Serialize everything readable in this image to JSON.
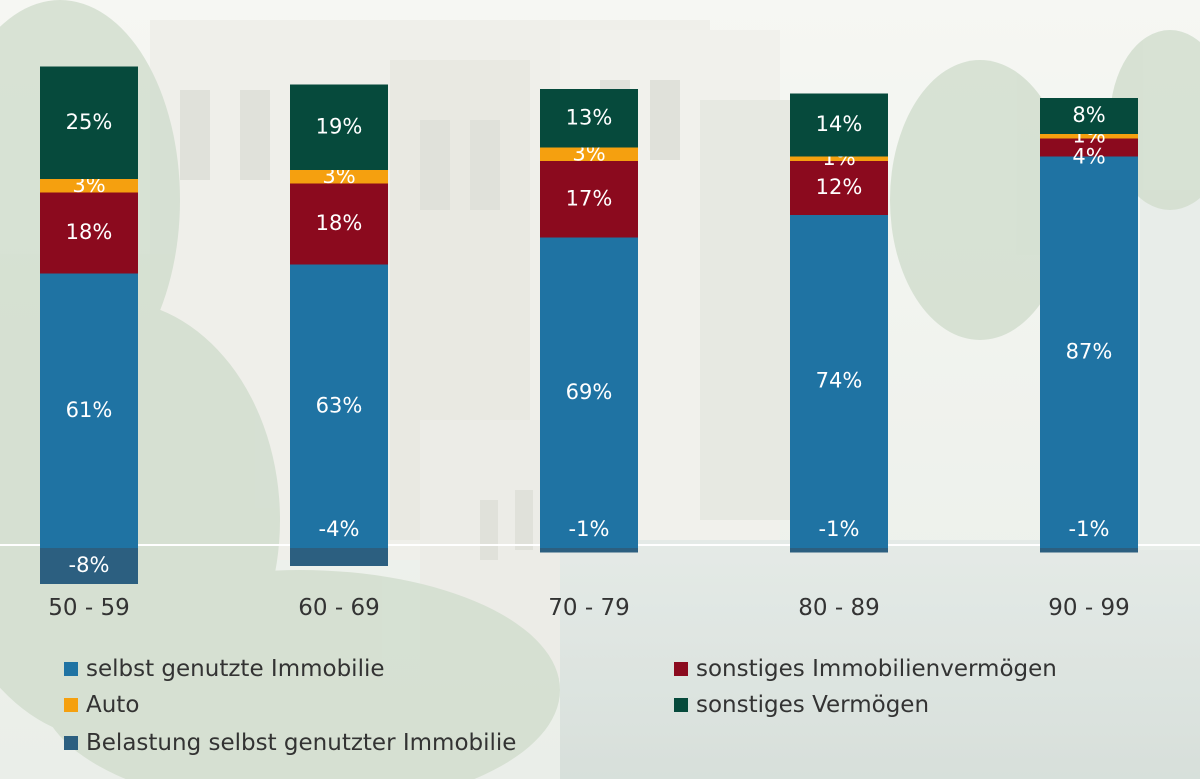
{
  "chart_data": {
    "type": "bar",
    "stacked": true,
    "categories": [
      "50 - 59",
      "60 - 69",
      "70 - 79",
      "80 - 89",
      "90 - 99"
    ],
    "series": [
      {
        "name": "selbst genutzte Immobilie",
        "color": "#1f73a3",
        "values": [
          61,
          63,
          69,
          74,
          87
        ],
        "labels": [
          "61%",
          "63%",
          "69%",
          "74%",
          "87%"
        ]
      },
      {
        "name": "sonstiges Immobilienvermögen",
        "color": "#8b0a1e",
        "values": [
          18,
          18,
          17,
          12,
          4
        ],
        "labels": [
          "18%",
          "18%",
          "17%",
          "12%",
          "4%"
        ]
      },
      {
        "name": "Auto",
        "color": "#f5a00f",
        "values": [
          3,
          3,
          3,
          1,
          1
        ],
        "labels": [
          "3%",
          "3%",
          "3%",
          "1%",
          "1%"
        ]
      },
      {
        "name": "sonstiges Vermögen",
        "color": "#064a3c",
        "values": [
          25,
          19,
          13,
          14,
          8
        ],
        "labels": [
          "25%",
          "19%",
          "13%",
          "14%",
          "8%"
        ]
      },
      {
        "name": "Belastung selbst genutzter Immobilie",
        "color": "#2c5f80",
        "values": [
          -8,
          -4,
          -1,
          -1,
          -1
        ],
        "labels": [
          "-8%",
          "-4%",
          "-1%",
          "-1%",
          "-1%"
        ]
      }
    ],
    "grid": false,
    "legend_position": "bottom"
  },
  "legend": {
    "items": [
      {
        "label": "selbst genutzte Immobilie",
        "color": "#1f73a3"
      },
      {
        "label": "sonstiges Immobilienvermögen",
        "color": "#8b0a1e"
      },
      {
        "label": "Auto",
        "color": "#f5a00f"
      },
      {
        "label": "sonstiges Vermögen",
        "color": "#064a3c"
      },
      {
        "label": "Belastung selbst genutzter Immobilie",
        "color": "#2c5f80"
      }
    ]
  }
}
